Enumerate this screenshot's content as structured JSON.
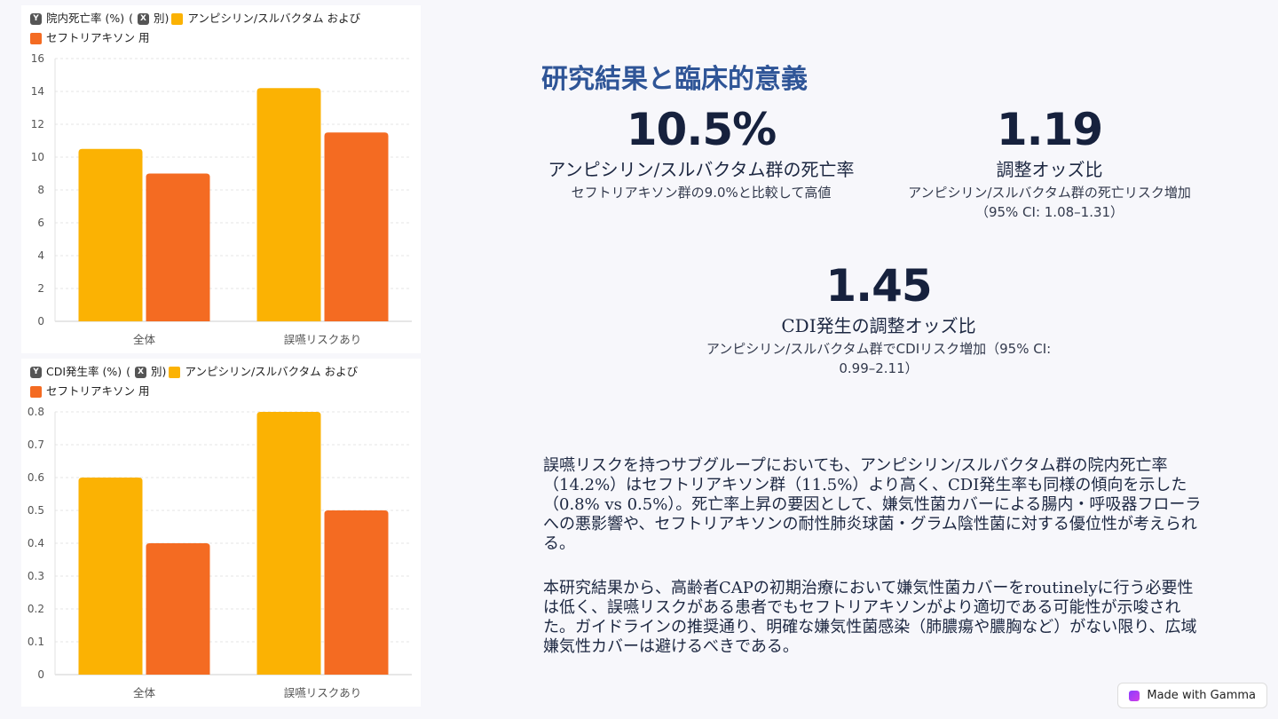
{
  "charts": [
    {
      "legend": {
        "y_tag": "Y",
        "y_label": "院内死亡率 (%)",
        "paren_open": "(",
        "x_tag": "X",
        "x_label": "別)",
        "series1_label": "アンピシリン/スルバクタム および",
        "series2_label": "セフトリアキソン 用"
      }
    },
    {
      "legend": {
        "y_tag": "Y",
        "y_label": "CDI発生率 (%)",
        "paren_open": "(",
        "x_tag": "X",
        "x_label": "別)",
        "series1_label": "アンピシリン/スルバクタム および",
        "series2_label": "セフトリアキソン 用"
      }
    }
  ],
  "chart_data": [
    {
      "type": "bar",
      "categories": [
        "全体",
        "誤嚥リスクあり"
      ],
      "series": [
        {
          "values": [
            10.5,
            14.2
          ],
          "color": "#fbb203"
        },
        {
          "values": [
            9.0,
            11.5
          ],
          "color": "#f46b22"
        }
      ],
      "yticks": [
        0,
        2,
        4,
        6,
        8,
        10,
        12,
        14,
        16
      ],
      "ytick_labels": [
        "0",
        "2",
        "4",
        "6",
        "8",
        "10",
        "12",
        "14",
        "16"
      ],
      "ylim": [
        0,
        16
      ],
      "grid": true
    },
    {
      "type": "bar",
      "categories": [
        "全体",
        "誤嚥リスクあり"
      ],
      "series": [
        {
          "values": [
            0.6,
            0.8
          ],
          "color": "#fbb203"
        },
        {
          "values": [
            0.4,
            0.5
          ],
          "color": "#f46b22"
        }
      ],
      "yticks": [
        0,
        0.1,
        0.2,
        0.3,
        0.4,
        0.5,
        0.6,
        0.7,
        0.8
      ],
      "ytick_labels": [
        "0",
        "0.1",
        "0.2",
        "0.3",
        "0.4",
        "0.5",
        "0.6",
        "0.7",
        "0.8"
      ],
      "ylim": [
        0,
        0.8
      ],
      "grid": true
    }
  ],
  "title": "研究結果と臨床的意義",
  "stats": [
    {
      "value": "10.5%",
      "label": "アンピシリン/スルバクタム群の死亡率",
      "desc": "セフトリアキソン群の9.0%と比較して高値"
    },
    {
      "value": "1.19",
      "label": "調整オッズ比",
      "desc": "アンピシリン/スルバクタム群の死亡リスク増加（95% CI: 1.08–1.31）"
    },
    {
      "value": "1.45",
      "label": "CDI発生の調整オッズ比",
      "desc": "アンピシリン/スルバクタム群でCDIリスク増加（95% CI: 0.99–2.11）"
    }
  ],
  "paragraphs": [
    "誤嚥リスクを持つサブグループにおいても、アンピシリン/スルバクタム群の院内死亡率（14.2%）はセフトリアキソン群（11.5%）より高く、CDI発生率も同様の傾向を示した（0.8% vs 0.5%）。死亡率上昇の要因として、嫌気性菌カバーによる腸内・呼吸器フローラへの悪影響や、セフトリアキソンの耐性肺炎球菌・グラム陰性菌に対する優位性が考えられる。",
    "本研究結果から、高齢者CAPの初期治療において嫌気性菌カバーをroutinelyに行う必要性は低く、誤嚥リスクがある患者でもセフトリアキソンがより適切である可能性が示唆された。ガイドラインの推奨通り、明確な嫌気性菌感染（肺膿瘍や膿胸など）がない限り、広域嫌気性カバーは避けるべきである。"
  ],
  "badge": {
    "label": "Made with Gamma",
    "icon": "gamma-logo-icon"
  }
}
